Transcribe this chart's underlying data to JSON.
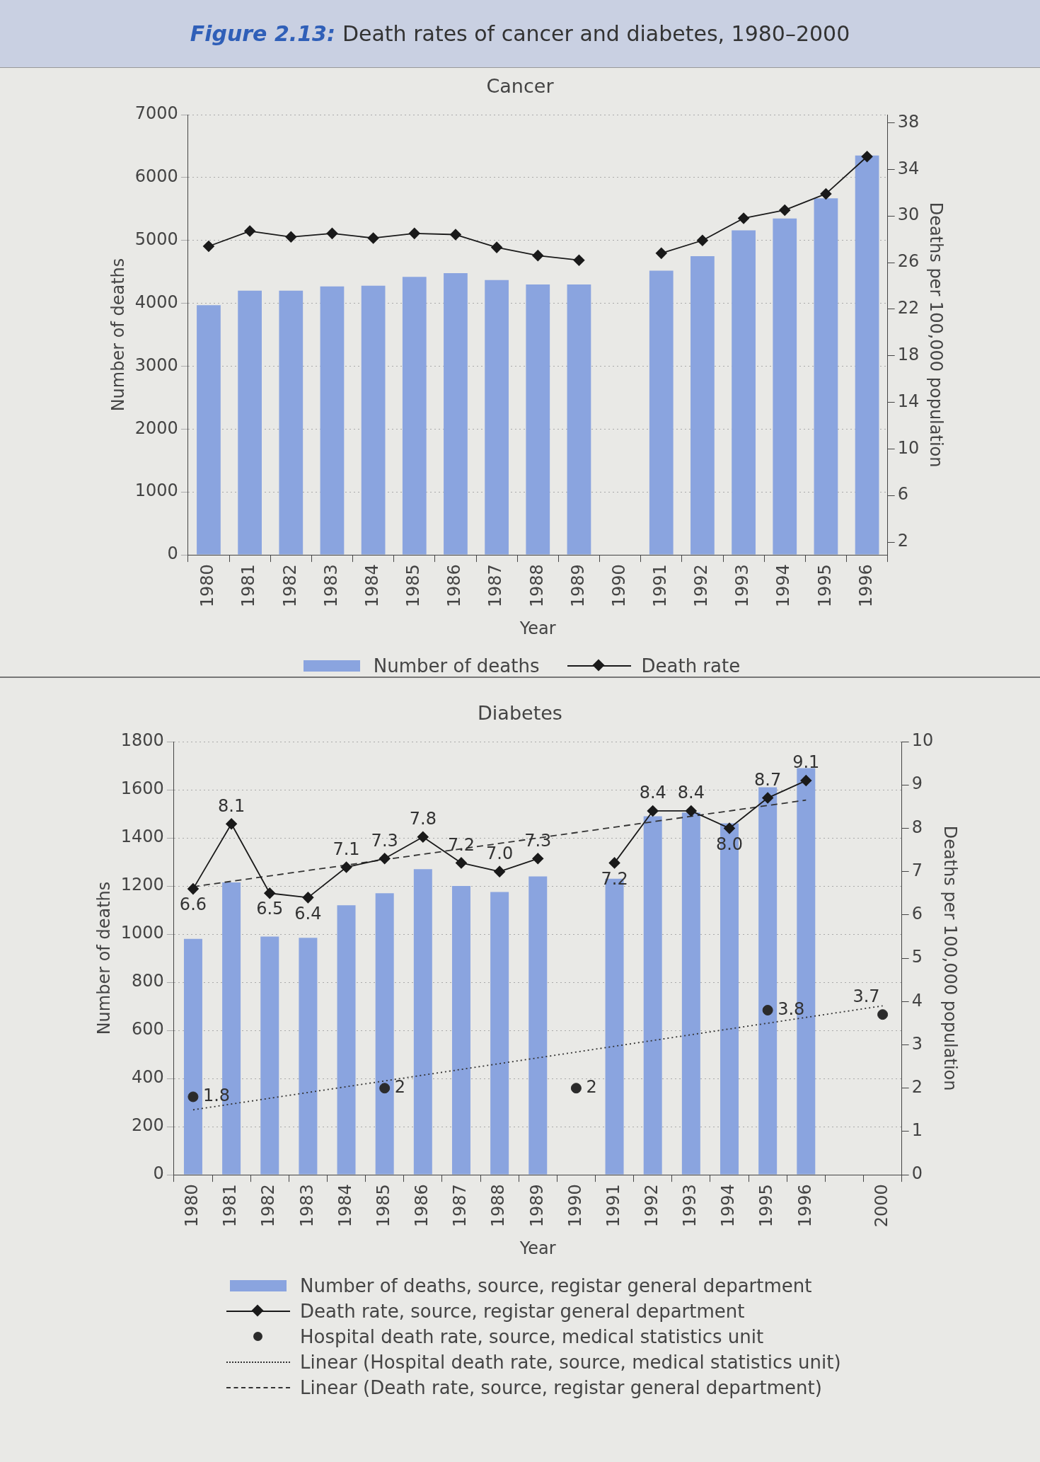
{
  "chart_data": [
    {
      "type": "bar",
      "title": "Figure 2.13: Death rates of cancer and diabetes, 1980–2000",
      "subtitle": "Cancer",
      "xlabel": "Year",
      "ylabel": "Number of deaths",
      "y2label": "Deaths per 100,000 population",
      "categories": [
        "1980",
        "1981",
        "1982",
        "1983",
        "1984",
        "1985",
        "1986",
        "1987",
        "1988",
        "1989",
        "1990",
        "1991",
        "1992",
        "1993",
        "1994",
        "1995",
        "1996"
      ],
      "series": [
        {
          "name": "Number of deaths",
          "color": "#8aa4df",
          "values": [
            3970,
            4200,
            4200,
            4270,
            4280,
            4420,
            4480,
            4370,
            4300,
            4300,
            null,
            4520,
            4750,
            5160,
            5350,
            5670,
            6350
          ]
        },
        {
          "name": "Death rate",
          "type": "line",
          "axis": "y2",
          "color": "#1a1a1a",
          "marker": "diamond",
          "values": [
            27.4,
            28.7,
            28.2,
            28.5,
            28.1,
            28.5,
            28.4,
            27.3,
            26.6,
            26.2,
            null,
            26.8,
            27.9,
            29.8,
            30.5,
            31.9,
            35.1
          ]
        }
      ],
      "ylim": [
        0,
        7000
      ],
      "yticks": [
        0,
        1000,
        2000,
        3000,
        4000,
        5000,
        6000,
        7000
      ],
      "y2lim": [
        0.9,
        38.7
      ],
      "y2ticks": [
        2,
        6,
        10,
        14,
        18,
        22,
        26,
        30,
        34,
        38
      ],
      "grid": "y",
      "legend": "bottom"
    },
    {
      "type": "bar",
      "title": "Diabetes",
      "xlabel": "Year",
      "ylabel": "Number of deaths",
      "y2label": "Deaths per 100,000 population",
      "categories": [
        "1980",
        "1981",
        "1982",
        "1983",
        "1984",
        "1985",
        "1986",
        "1987",
        "1988",
        "1989",
        "1990",
        "1991",
        "1992",
        "1993",
        "1994",
        "1995",
        "1996",
        null,
        "2000"
      ],
      "series": [
        {
          "name": "Number of deaths, source, registar general department",
          "color": "#8aa4df",
          "values": [
            980,
            1215,
            990,
            985,
            1120,
            1170,
            1270,
            1200,
            1175,
            1240,
            null,
            1230,
            1490,
            1505,
            1460,
            1610,
            1690,
            null,
            null
          ]
        },
        {
          "name": "Death rate, source, registar general department",
          "type": "line",
          "axis": "y2",
          "color": "#1a1a1a",
          "marker": "diamond",
          "values": [
            6.6,
            8.1,
            6.5,
            6.4,
            7.1,
            7.3,
            7.8,
            7.2,
            7.0,
            7.3,
            null,
            7.2,
            8.4,
            8.4,
            8.0,
            8.7,
            9.1,
            null,
            null
          ],
          "value_labels": [
            "6.6",
            "8.1",
            "6.5",
            "6.4",
            "7.1",
            "7.3",
            "7.8",
            "7.2",
            "7.0",
            "7.3",
            null,
            "7.2",
            "8.4",
            "8.4",
            "8.0",
            "8.7",
            "9.1",
            null,
            null
          ]
        },
        {
          "name": "Hospital death rate, source, medical statistics unit",
          "type": "scatter",
          "axis": "y2",
          "color": "#2b2b2b",
          "marker": "circle",
          "values": [
            1.8,
            null,
            null,
            null,
            null,
            2,
            null,
            null,
            null,
            null,
            2,
            null,
            null,
            null,
            null,
            3.8,
            null,
            null,
            3.7
          ],
          "value_labels": [
            "1.8",
            null,
            null,
            null,
            null,
            "2",
            null,
            null,
            null,
            null,
            "2",
            null,
            null,
            null,
            null,
            "3.8",
            null,
            null,
            "3.7"
          ]
        },
        {
          "name": "Linear (Hospital death rate, source, medical statistics unit)",
          "type": "line",
          "axis": "y2",
          "color": "#333333",
          "marker": "none",
          "line_style": "dotted",
          "values": [
            1.5,
            null,
            null,
            null,
            null,
            null,
            null,
            null,
            null,
            null,
            null,
            null,
            null,
            null,
            null,
            null,
            null,
            null,
            3.9
          ]
        },
        {
          "name": "Linear (Death rate, source, registar general department)",
          "type": "line",
          "axis": "y2",
          "color": "#333333",
          "marker": "none",
          "line_style": "dashed",
          "values": [
            6.65,
            null,
            null,
            null,
            null,
            null,
            null,
            null,
            null,
            null,
            null,
            null,
            null,
            null,
            null,
            null,
            8.65,
            null,
            null
          ]
        }
      ],
      "ylim": [
        0,
        1800
      ],
      "yticks": [
        0,
        200,
        400,
        600,
        800,
        1000,
        1200,
        1400,
        1600,
        1800
      ],
      "y2lim": [
        0,
        10
      ],
      "y2ticks": [
        0,
        1,
        2,
        3,
        4,
        5,
        6,
        7,
        8,
        9,
        10
      ],
      "grid": "y",
      "legend": "bottom"
    }
  ]
}
